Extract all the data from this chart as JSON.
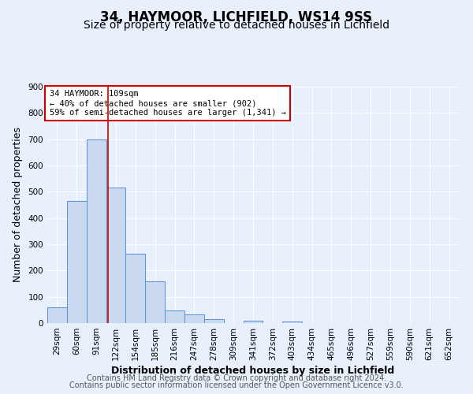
{
  "title": "34, HAYMOOR, LICHFIELD, WS14 9SS",
  "subtitle": "Size of property relative to detached houses in Lichfield",
  "xlabel": "Distribution of detached houses by size in Lichfield",
  "ylabel": "Number of detached properties",
  "categories": [
    "29sqm",
    "60sqm",
    "91sqm",
    "122sqm",
    "154sqm",
    "185sqm",
    "216sqm",
    "247sqm",
    "278sqm",
    "309sqm",
    "341sqm",
    "372sqm",
    "403sqm",
    "434sqm",
    "465sqm",
    "496sqm",
    "527sqm",
    "559sqm",
    "590sqm",
    "621sqm",
    "652sqm"
  ],
  "bar_values": [
    60,
    465,
    700,
    515,
    265,
    160,
    48,
    34,
    14,
    0,
    10,
    0,
    5,
    0,
    0,
    0,
    0,
    0,
    0,
    0,
    0
  ],
  "bar_color": "#c8d9f0",
  "bar_edge_color": "#5b8dd9",
  "vline_color": "#cc0000",
  "annotation_text": "34 HAYMOOR: 109sqm\n← 40% of detached houses are smaller (902)\n59% of semi-detached houses are larger (1,341) →",
  "annotation_box_color": "#ffffff",
  "annotation_box_edge_color": "#cc0000",
  "ylim": [
    0,
    900
  ],
  "yticks": [
    0,
    100,
    200,
    300,
    400,
    500,
    600,
    700,
    800,
    900
  ],
  "footer_line1": "Contains HM Land Registry data © Crown copyright and database right 2024.",
  "footer_line2": "Contains public sector information licensed under the Open Government Licence v3.0.",
  "background_color": "#e8f0fb",
  "plot_background_color": "#e8f0fb",
  "grid_color": "#ffffff",
  "title_fontsize": 12,
  "subtitle_fontsize": 10,
  "label_fontsize": 9,
  "tick_fontsize": 7.5,
  "footer_fontsize": 7
}
